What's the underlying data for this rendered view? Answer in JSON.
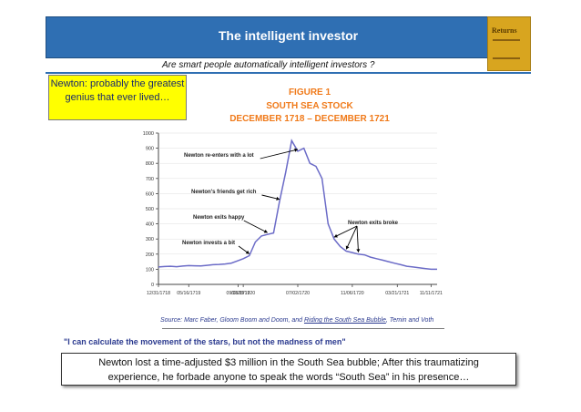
{
  "header": {
    "title": "The intelligent investor"
  },
  "book": {
    "icon": "book-cover-icon",
    "title": "Returns"
  },
  "subtitle": "Are smart people automatically intelligent investors ?",
  "callout": {
    "text": "Newton: probably the greatest genius that ever lived…"
  },
  "figure": {
    "line1": "FIGURE 1",
    "line2": "SOUTH SEA STOCK",
    "line3": "DECEMBER 1718 – DECEMBER 1721"
  },
  "chart_data": {
    "type": "line",
    "x": [
      "12/31/1718",
      "01/31/1719",
      "02/28/1719",
      "03/31/1719",
      "04/30/1719",
      "05/16/1719",
      "06/30/1719",
      "07/31/1719",
      "08/26/1719",
      "09/30/1719",
      "10/31/1719",
      "11/30/1719",
      "12/31/1719",
      "01/31/1720",
      "02/28/1720",
      "03/15/1720",
      "03/31/1720",
      "04/15/1720",
      "04/30/1720",
      "05/15/1720",
      "05/31/1720",
      "06/15/1720",
      "06/24/1720",
      "07/02/1720",
      "07/15/1720",
      "07/31/1720",
      "08/15/1720",
      "08/31/1720",
      "09/15/1720",
      "09/30/1720",
      "10/15/1720",
      "10/31/1720",
      "11/06/1720",
      "11/30/1720",
      "12/31/1720",
      "01/31/1721",
      "02/28/1721",
      "03/31/1721",
      "04/30/1721",
      "05/31/1721",
      "06/30/1721",
      "07/31/1721",
      "08/31/1721",
      "09/30/1721",
      "10/31/1721",
      "11/11/1721",
      "12/31/1721"
    ],
    "series": [
      {
        "values": [
          115,
          118,
          120,
          117,
          121,
          124,
          123,
          122,
          126,
          130,
          132,
          135,
          140,
          155,
          170,
          190,
          280,
          320,
          330,
          340,
          550,
          740,
          950,
          880,
          900,
          800,
          780,
          700,
          400,
          300,
          250,
          220,
          210,
          200,
          195,
          180,
          170,
          160,
          150,
          140,
          130,
          120,
          115,
          110,
          105,
          100,
          100
        ]
      }
    ],
    "xtick_labels": [
      "12/31/1718",
      "05/16/1719",
      "09/26/1719",
      "02/28/1720",
      "07/02/1720",
      "11/06/1720",
      "03/21/1721",
      "11/11/1721"
    ],
    "ytick_labels": [
      "0",
      "100",
      "200",
      "300",
      "400",
      "500",
      "600",
      "700",
      "800",
      "900",
      "1000"
    ],
    "ylim": [
      0,
      1000
    ],
    "annotations": [
      "Newton re-enters with a lot",
      "Newton's friends get rich",
      "Newton exits happy",
      "Newton invests a bit",
      "Newton exits broke"
    ],
    "title": "",
    "xlabel": "",
    "ylabel": ""
  },
  "source": {
    "prefix": "Source:  Marc Faber, Gloom Boom and Doom, and ",
    "link": "Riding the South Sea Bubble",
    "suffix": ", Temin and Voth"
  },
  "quote": "\"I can calculate the movement of the stars, but not the madness of men\"",
  "bottom": {
    "line1": "Newton lost a time-adjusted $3 million in the South Sea bubble; After this traumatizing",
    "line2": "experience, he forbade anyone to speak the words “South Sea” in his presence…"
  },
  "colors": {
    "header": "#2f6fb3",
    "callout": "#ffff00",
    "chart_line": "#6b6bc7",
    "figure_title": "#f07a1a"
  }
}
